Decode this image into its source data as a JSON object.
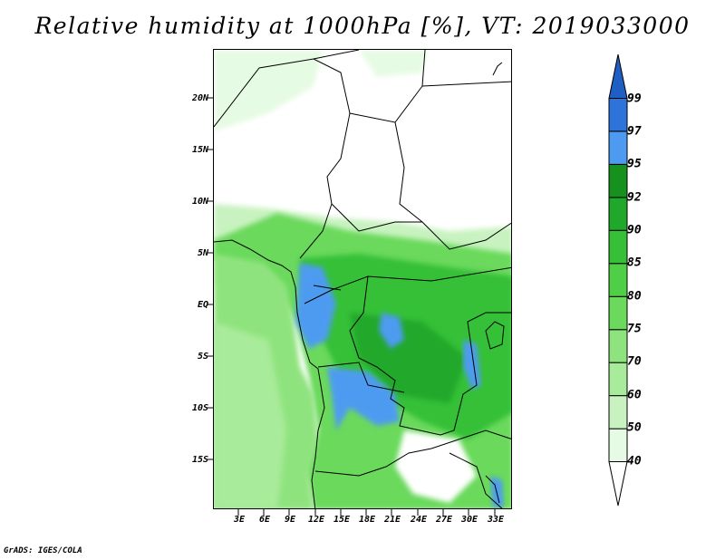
{
  "title": "Relative humidity at 1000hPa [%], VT: 2019033000",
  "credit": "GrADS: IGES/COLA",
  "map": {
    "variable": "Relative humidity",
    "level": "1000hPa",
    "units": "%",
    "valid_time": "2019033000",
    "lat_labels": [
      "20N",
      "15N",
      "10N",
      "5N",
      "EQ",
      "5S",
      "10S",
      "15S"
    ],
    "lon_labels": [
      "3E",
      "6E",
      "9E",
      "12E",
      "15E",
      "18E",
      "21E",
      "24E",
      "27E",
      "30E",
      "33E"
    ]
  },
  "colorbar": {
    "levels": [
      "40",
      "50",
      "60",
      "70",
      "75",
      "80",
      "85",
      "90",
      "92",
      "95",
      "97",
      "99"
    ],
    "colors": [
      "#ffffff",
      "#e6fbe3",
      "#c8f2c0",
      "#a8eb9a",
      "#8fe37e",
      "#6ad95c",
      "#4fcf46",
      "#35c037",
      "#20a82a",
      "#16911e",
      "#4d9bf0",
      "#2e73d9",
      "#1f5fc4"
    ]
  }
}
